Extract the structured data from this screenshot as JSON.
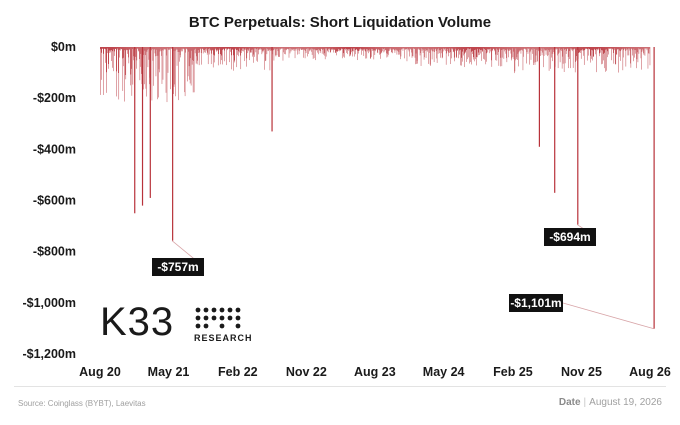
{
  "title": "BTC Perpetuals: Short Liquidation Volume",
  "source": "Source: Coinglass (BYBT), Laevitas",
  "date_label": "Date",
  "date_value": "August 19, 2026",
  "logo": {
    "text": "K33",
    "sub": "RESEARCH"
  },
  "colors": {
    "bars": "#b8323a",
    "callout_bg": "#111111",
    "text": "#1a1a1a"
  },
  "chart_data": {
    "type": "bar",
    "title": "BTC Perpetuals: Short Liquidation Volume",
    "unit": "$ million",
    "ylim": [
      -1200,
      0
    ],
    "yticks": [
      0,
      -200,
      -400,
      -600,
      -800,
      -1000,
      -1200
    ],
    "ytick_labels": [
      "$0m",
      "-$200m",
      "-$400m",
      "-$600m",
      "-$800m",
      "-$1,000m",
      "-$1,200m"
    ],
    "xtick_labels": [
      "Aug 20",
      "May 21",
      "Feb 22",
      "Nov 22",
      "Aug 23",
      "May 24",
      "Feb 25",
      "Nov 25",
      "Aug 26"
    ],
    "xrange": [
      "2020-08",
      "2026-08"
    ],
    "grid": false,
    "frequency": "daily",
    "notable_values": [
      {
        "date": "2021-05",
        "value": -757,
        "label": "-$757m"
      },
      {
        "date": "2025-10",
        "value": -694,
        "label": "-$694m"
      },
      {
        "date": "2026-08",
        "value": -1101,
        "label": "-$1,101m"
      }
    ],
    "other_spikes": [
      {
        "date": "2020-12",
        "value": -650
      },
      {
        "date": "2021-01",
        "value": -620
      },
      {
        "date": "2021-02",
        "value": -590
      },
      {
        "date": "2022-06",
        "value": -330
      },
      {
        "date": "2025-05",
        "value": -390
      },
      {
        "date": "2025-07",
        "value": -570
      }
    ]
  }
}
